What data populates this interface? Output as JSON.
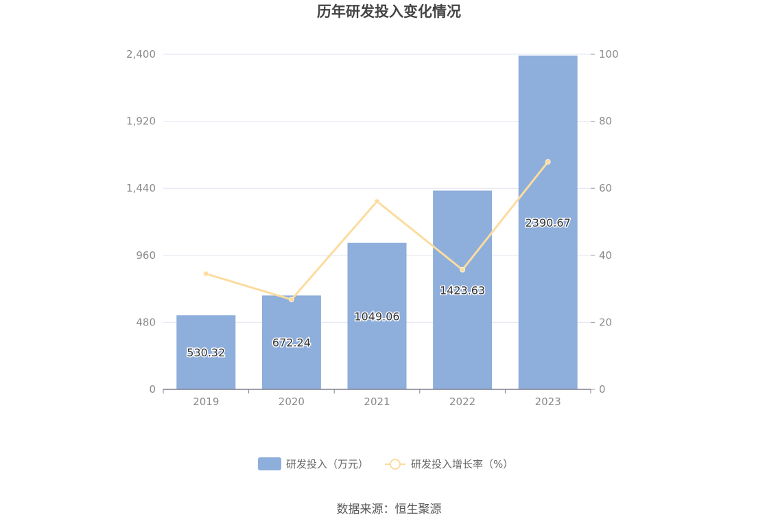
{
  "chart_data": {
    "type": "bar",
    "title": "历年研发投入变化情况",
    "categories": [
      "2019",
      "2020",
      "2021",
      "2022",
      "2023"
    ],
    "series": [
      {
        "name": "研发投入（万元）",
        "type": "bar",
        "axis": "left",
        "color": "#8eaedb",
        "values": [
          530.32,
          672.24,
          1049.06,
          1423.63,
          2390.67
        ],
        "data_labels": [
          "530.32",
          "672.24",
          "1049.06",
          "1423.63",
          "2390.67"
        ]
      },
      {
        "name": "研发投入增长率（%）",
        "type": "line",
        "axis": "right",
        "color": "#fbdc9f",
        "values": [
          34.5,
          26.8,
          56.1,
          35.7,
          67.9
        ]
      }
    ],
    "y_left": {
      "ylim": [
        0,
        2400
      ],
      "ticks": [
        "0",
        "480",
        "960",
        "1,440",
        "1,920",
        "2,400"
      ]
    },
    "y_right": {
      "ylim": [
        0,
        100
      ],
      "ticks": [
        "0",
        "20",
        "40",
        "60",
        "80",
        "100"
      ]
    },
    "grid": true,
    "legend_position": "bottom"
  },
  "source": "数据来源：恒生聚源"
}
